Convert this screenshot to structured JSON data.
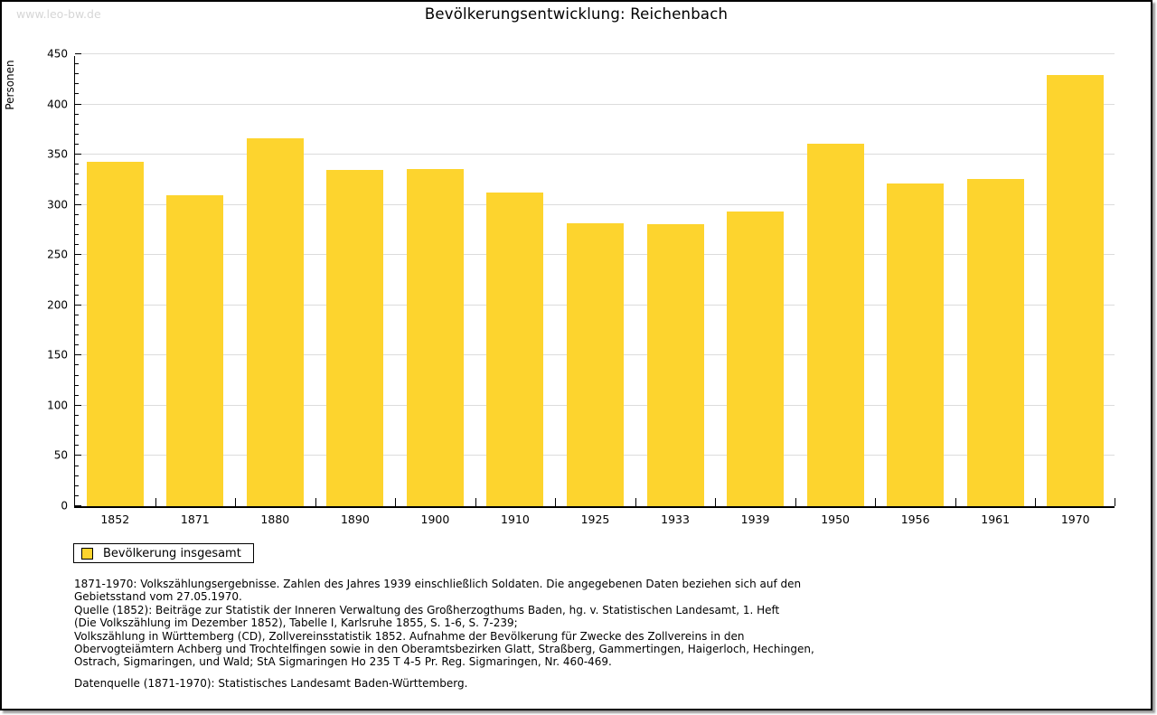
{
  "page": {
    "watermark": "www.leo-bw.de",
    "title": "Bevölkerungsentwicklung: Reichenbach"
  },
  "chart_data": {
    "type": "bar",
    "title": "Bevölkerungsentwicklung: Reichenbach",
    "xlabel": "",
    "ylabel": "Personen",
    "categories": [
      "1852",
      "1871",
      "1880",
      "1890",
      "1900",
      "1910",
      "1925",
      "1933",
      "1939",
      "1950",
      "1956",
      "1961",
      "1970"
    ],
    "values": [
      343,
      310,
      366,
      335,
      336,
      312,
      282,
      281,
      293,
      361,
      321,
      326,
      429
    ],
    "ylim": [
      0,
      450
    ],
    "y_major_step": 50,
    "y_minor_step": 10,
    "grid": "horizontal-major",
    "bar_color": "#FDD42E",
    "gridline_color": "#dcdcdc",
    "legend": {
      "position": "below-left",
      "entries": [
        {
          "label": "Bevölkerung insgesamt",
          "color": "#FDD42E"
        }
      ]
    }
  },
  "footer": {
    "lines": [
      "1871-1970: Volkszählungsergebnisse. Zahlen des Jahres 1939 einschließlich Soldaten. Die angegebenen Daten beziehen sich auf den",
      "Gebietsstand vom 27.05.1970.",
      "Quelle (1852): Beiträge zur Statistik der Inneren Verwaltung des Großherzogthums Baden, hg. v. Statistischen Landesamt, 1. Heft",
      "(Die Volkszählung im Dezember 1852), Tabelle I, Karlsruhe 1855, S. 1-6, S. 7-239;",
      "Volkszählung in Württemberg (CD), Zollvereinsstatistik 1852. Aufnahme der Bevölkerung für Zwecke des Zollvereins in den",
      "Obervogteiämtern Achberg und Trochtelfingen sowie in den Oberamtsbezirken Glatt, Straßberg, Gammertingen, Haigerloch, Hechingen,",
      "Ostrach, Sigmaringen, und Wald; StA Sigmaringen Ho 235 T 4-5 Pr. Reg. Sigmaringen, Nr. 460-469."
    ],
    "datasource": "Datenquelle (1871-1970): Statistisches Landesamt Baden-Württemberg."
  }
}
